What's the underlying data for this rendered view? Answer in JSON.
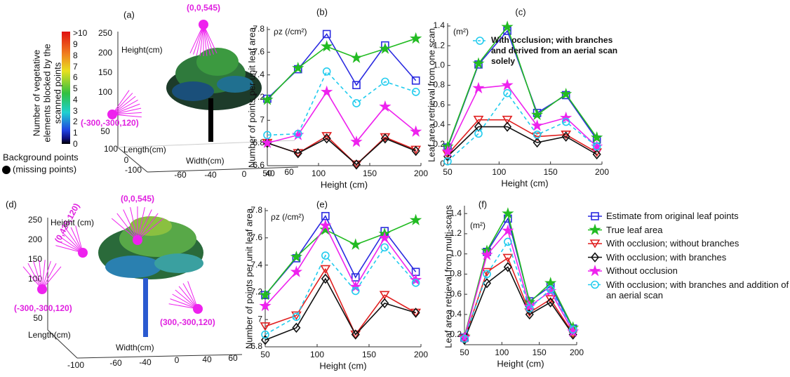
{
  "chart_data": [
    {
      "type": "line",
      "title": "(b)",
      "annotation": "ρz (/cm²)",
      "x_label": "Height (cm)",
      "y_label": "Number of points per unit leaf area",
      "x": [
        50,
        80,
        108,
        137,
        165,
        195
      ],
      "xlim": [
        50,
        200
      ],
      "xticks": [
        50,
        100,
        150,
        200
      ],
      "ylim": [
        6.6,
        7.8
      ],
      "yticks": [
        6.6,
        6.8,
        7,
        7.2,
        7.4,
        7.6,
        7.8
      ],
      "series": [
        {
          "color": "#2a2ae0",
          "marker": "square",
          "values": [
            7.19,
            7.45,
            7.76,
            7.31,
            7.66,
            7.35
          ]
        },
        {
          "color": "#22bb22",
          "marker": "star",
          "values": [
            7.18,
            7.46,
            7.65,
            7.55,
            7.63,
            7.72
          ]
        },
        {
          "color": "#e02020",
          "marker": "triangle-down",
          "values": [
            6.8,
            6.71,
            6.86,
            6.61,
            6.85,
            6.74
          ]
        },
        {
          "color": "#111111",
          "marker": "diamond",
          "values": [
            6.8,
            6.71,
            6.84,
            6.61,
            6.84,
            6.73
          ]
        },
        {
          "color": "#ee22ee",
          "marker": "star",
          "values": [
            6.8,
            6.87,
            7.25,
            6.81,
            7.12,
            6.9
          ]
        },
        {
          "color": "#22ccee",
          "marker": "circle",
          "dashed": true,
          "values": [
            6.87,
            6.88,
            7.43,
            7.15,
            7.34,
            7.25
          ]
        }
      ]
    },
    {
      "type": "line",
      "title": "(c)",
      "annotation": "(m²)",
      "x_label": "Height (cm)",
      "y_label": "Leaf area retrieval from one scan",
      "x": [
        50,
        80,
        108,
        137,
        165,
        195
      ],
      "xlim": [
        50,
        200
      ],
      "xticks": [
        50,
        100,
        150,
        200
      ],
      "ylim": [
        0,
        1.4
      ],
      "yticks": [
        0,
        0.2,
        0.4,
        0.6,
        0.8,
        {
          "value": 1,
          "label": "1.0"
        },
        1.2,
        1.4
      ],
      "series": [
        {
          "color": "#2a2ae0",
          "marker": "square",
          "values": [
            0.17,
            1.01,
            1.35,
            0.52,
            0.7,
            0.25
          ]
        },
        {
          "color": "#22bb22",
          "marker": "star",
          "values": [
            0.18,
            1.02,
            1.39,
            0.5,
            0.71,
            0.27
          ]
        },
        {
          "color": "#e02020",
          "marker": "triangle-down",
          "values": [
            0.1,
            0.45,
            0.45,
            0.28,
            0.3,
            0.12
          ]
        },
        {
          "color": "#111111",
          "marker": "diamond",
          "values": [
            0.08,
            0.38,
            0.38,
            0.22,
            0.28,
            0.1
          ]
        },
        {
          "color": "#ee22ee",
          "marker": "star",
          "values": [
            0.13,
            0.77,
            0.8,
            0.39,
            0.47,
            0.18
          ]
        },
        {
          "name": "With occlusion; with branches and derived from an aerial scan solely",
          "color": "#22ccee",
          "marker": "circle",
          "dashed": true,
          "values": [
            0.03,
            0.31,
            0.72,
            0.3,
            0.43,
            0.18
          ]
        }
      ]
    },
    {
      "type": "line",
      "title": "(e)",
      "annotation": "ρz (/cm²)",
      "x_label": "Height (cm)",
      "y_label": "Number of points per unit leaf area",
      "x": [
        50,
        80,
        108,
        137,
        165,
        195
      ],
      "xlim": [
        50,
        200
      ],
      "xticks": [
        50,
        100,
        150,
        200
      ],
      "ylim": [
        6.8,
        7.8
      ],
      "yticks": [
        6.8,
        7,
        7.2,
        7.4,
        7.6,
        7.8
      ],
      "series": [
        {
          "color": "#2a2ae0",
          "marker": "square",
          "values": [
            7.18,
            7.45,
            7.76,
            7.31,
            7.65,
            7.35
          ]
        },
        {
          "color": "#22bb22",
          "marker": "star",
          "values": [
            7.18,
            7.46,
            7.66,
            7.55,
            7.63,
            7.73
          ]
        },
        {
          "color": "#e02020",
          "marker": "triangle-down",
          "values": [
            6.95,
            7.03,
            7.37,
            6.89,
            7.18,
            7.05
          ]
        },
        {
          "color": "#111111",
          "marker": "diamond",
          "values": [
            6.85,
            6.94,
            7.3,
            6.89,
            7.12,
            7.05
          ]
        },
        {
          "color": "#ee22ee",
          "marker": "star",
          "values": [
            7.1,
            7.35,
            7.69,
            7.24,
            7.6,
            7.29
          ]
        },
        {
          "color": "#22ccee",
          "marker": "circle",
          "dashed": true,
          "values": [
            6.89,
            7.02,
            7.47,
            7.21,
            7.53,
            7.27
          ]
        }
      ]
    },
    {
      "type": "line",
      "title": "(f)",
      "annotation": "(m²)",
      "x_label": "Height (cm)",
      "y_label": "Leaf area retrieval from multi-scans",
      "x": [
        50,
        80,
        108,
        137,
        165,
        195
      ],
      "xlim": [
        50,
        200
      ],
      "xticks": [
        50,
        100,
        150,
        200
      ],
      "ylim": [
        0.1,
        1.45
      ],
      "yticks": [
        0.2,
        0.4,
        0.6,
        0.8,
        {
          "value": 1,
          "label": "1.0"
        },
        1.2,
        1.4
      ],
      "series": [
        {
          "name": "Estimate from original leaf points",
          "color": "#2a2ae0",
          "marker": "square",
          "values": [
            0.17,
            1.02,
            1.35,
            0.53,
            0.68,
            0.26
          ]
        },
        {
          "name": "True leaf area",
          "color": "#22bb22",
          "marker": "star",
          "values": [
            0.18,
            1.03,
            1.4,
            0.52,
            0.71,
            0.27
          ]
        },
        {
          "name": "With occlusion; without branches",
          "color": "#e02020",
          "marker": "triangle-down",
          "values": [
            0.16,
            0.82,
            0.96,
            0.42,
            0.55,
            0.21
          ]
        },
        {
          "name": "With occlusion; with branches",
          "color": "#111111",
          "marker": "diamond",
          "values": [
            0.15,
            0.71,
            0.87,
            0.4,
            0.52,
            0.2
          ]
        },
        {
          "name": "Without occlusion",
          "color": "#ee22ee",
          "marker": "star",
          "values": [
            0.17,
            0.99,
            1.23,
            0.48,
            0.63,
            0.23
          ]
        },
        {
          "name": "With occlusion; with branches and addition of an aerial scan",
          "color": "#22ccee",
          "marker": "circle",
          "dashed": true,
          "values": [
            0.16,
            0.8,
            1.12,
            0.46,
            0.65,
            0.25
          ]
        }
      ]
    }
  ],
  "scenes": [
    {
      "label": "(a)",
      "scanners": [
        "(0,0,545)",
        "(-300,-300,120)"
      ],
      "height_label": "Height(cm)",
      "height_ticks": [
        "250",
        "200",
        "150",
        "100",
        "50"
      ],
      "length_label": "Length(cm)",
      "length_ticks": [
        "100",
        "0",
        "-100"
      ],
      "width_label": "Width(cm)",
      "width_ticks": [
        "-60",
        "-40",
        "0",
        "40",
        "60"
      ],
      "colorbar_label": "Number of vegetative elements blocked by the scanned points",
      "colorbar_ticks": [
        ">10",
        "9",
        "8",
        "7",
        "6",
        "5",
        "4",
        "3",
        "2",
        "1",
        "0"
      ],
      "background_label": "Background points",
      "missing_label": "(missing points)"
    },
    {
      "label": "(d)",
      "scanners": [
        "(0,0,545)",
        "(0,425,120)",
        "(-300,-300,120)",
        "(300,-300,120)"
      ],
      "height_label": "Height (cm)",
      "height_ticks": [
        "250",
        "200",
        "150",
        "100",
        "50"
      ],
      "length_label": "Length(cm)",
      "length_ticks": [
        "-100"
      ],
      "width_label": "Width(cm)",
      "width_ticks": [
        "-60",
        "-40",
        "0",
        "40",
        "60"
      ]
    }
  ]
}
